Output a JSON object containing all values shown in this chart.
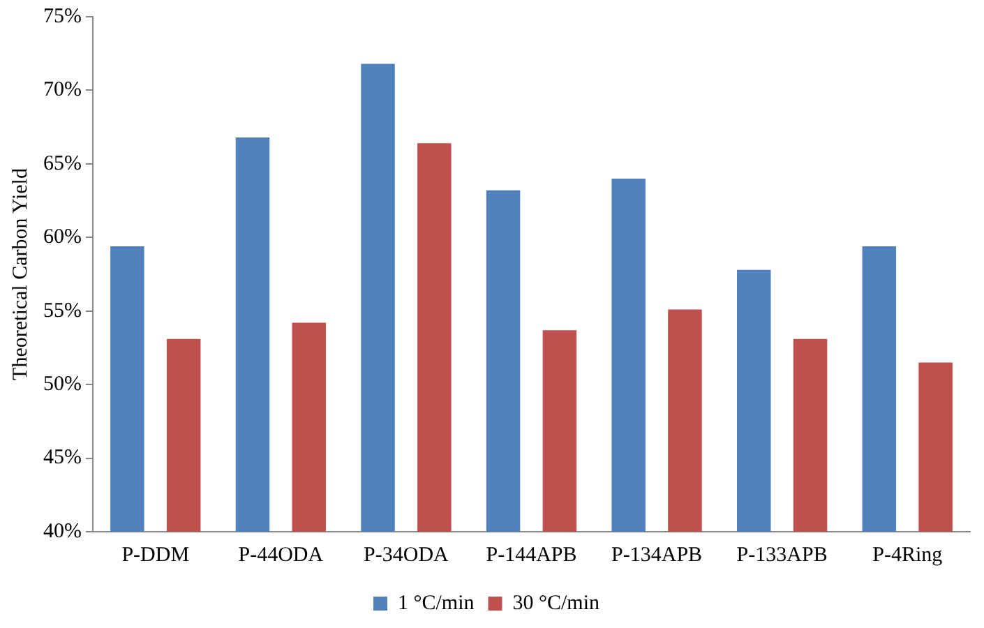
{
  "chart_data": {
    "type": "bar",
    "ylabel": "Theoretical Carbon Yield",
    "categories": [
      "P-DDM",
      "P-44ODA",
      "P-34ODA",
      "P-144APB",
      "P-134APB",
      "P-133APB",
      "P-4Ring"
    ],
    "series": [
      {
        "name": "1 °C/min",
        "color": "#4f81bd",
        "values": [
          59.4,
          66.8,
          71.8,
          63.2,
          64.0,
          57.8,
          59.4
        ]
      },
      {
        "name": "30 °C/min",
        "color": "#c0504d",
        "values": [
          53.1,
          54.2,
          66.4,
          53.7,
          55.1,
          53.1,
          51.5
        ]
      }
    ],
    "ylim": [
      40,
      75
    ],
    "yticks": [
      {
        "value": 40,
        "label": "40%"
      },
      {
        "value": 45,
        "label": "45%"
      },
      {
        "value": 50,
        "label": "50%"
      },
      {
        "value": 55,
        "label": "55%"
      },
      {
        "value": 60,
        "label": "60%"
      },
      {
        "value": 65,
        "label": "65%"
      },
      {
        "value": 70,
        "label": "70%"
      },
      {
        "value": 75,
        "label": "75%"
      }
    ],
    "grid": false,
    "legend": "bottom"
  }
}
